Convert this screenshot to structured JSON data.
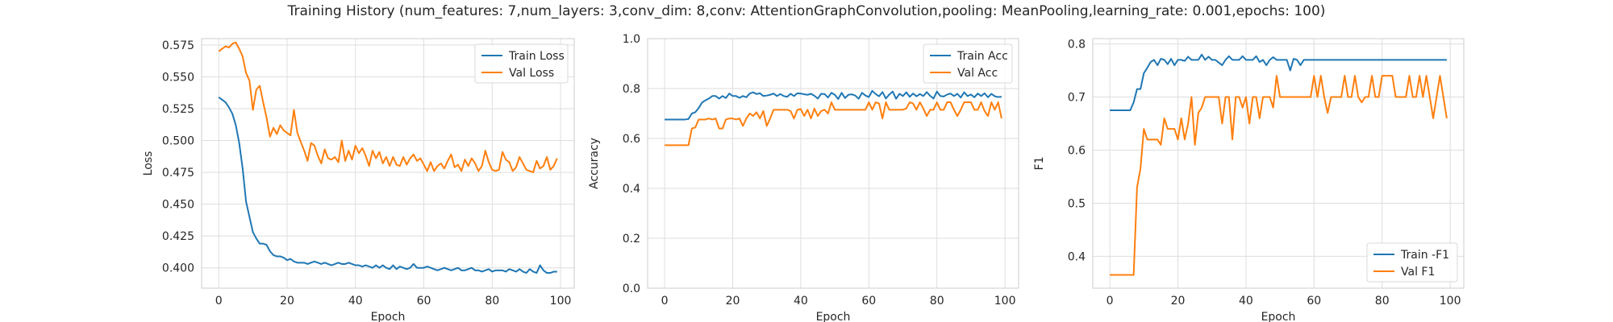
{
  "figure": {
    "title": "Training History (num_features: 7,num_layers: 3,conv_dim: 8,conv: AttentionGraphConvolution,pooling: MeanPooling,learning_rate: 0.001,epochs: 100)"
  },
  "colors": {
    "train": "#1f77b4",
    "val": "#ff7f0e",
    "grid": "#dedede",
    "axis": "#cccccc",
    "text": "#262626"
  },
  "chart_data": [
    {
      "type": "line",
      "title": "",
      "xlabel": "Epoch",
      "ylabel": "Loss",
      "xlim": [
        -5,
        104
      ],
      "ylim": [
        0.384,
        0.58
      ],
      "xticks": [
        0,
        20,
        40,
        60,
        80,
        100
      ],
      "xtick_labels": [
        "0",
        "20",
        "40",
        "60",
        "80",
        "100"
      ],
      "yticks": [
        0.4,
        0.425,
        0.45,
        0.475,
        0.5,
        0.525,
        0.55,
        0.575
      ],
      "ytick_labels": [
        "0.400",
        "0.425",
        "0.450",
        "0.475",
        "0.500",
        "0.525",
        "0.550",
        "0.575"
      ],
      "grid": true,
      "legend_position": "top-right",
      "series": [
        {
          "name": "Train Loss",
          "color": "#1f77b4",
          "values": [
            0.534,
            0.532,
            0.53,
            0.526,
            0.521,
            0.512,
            0.498,
            0.478,
            0.452,
            0.44,
            0.428,
            0.423,
            0.419,
            0.419,
            0.418,
            0.413,
            0.41,
            0.409,
            0.409,
            0.408,
            0.406,
            0.407,
            0.405,
            0.404,
            0.404,
            0.404,
            0.403,
            0.404,
            0.405,
            0.404,
            0.403,
            0.404,
            0.403,
            0.402,
            0.403,
            0.404,
            0.403,
            0.403,
            0.404,
            0.403,
            0.402,
            0.402,
            0.401,
            0.402,
            0.401,
            0.4,
            0.402,
            0.4,
            0.402,
            0.4,
            0.399,
            0.402,
            0.399,
            0.401,
            0.4,
            0.399,
            0.4,
            0.403,
            0.4,
            0.4,
            0.4,
            0.401,
            0.4,
            0.399,
            0.398,
            0.399,
            0.4,
            0.399,
            0.398,
            0.399,
            0.4,
            0.398,
            0.398,
            0.399,
            0.4,
            0.398,
            0.398,
            0.397,
            0.398,
            0.399,
            0.397,
            0.398,
            0.398,
            0.398,
            0.397,
            0.399,
            0.398,
            0.397,
            0.399,
            0.397,
            0.396,
            0.399,
            0.397,
            0.396,
            0.402,
            0.398,
            0.396,
            0.396,
            0.397,
            0.397
          ]
        },
        {
          "name": "Val Loss",
          "color": "#ff7f0e",
          "values": [
            0.57,
            0.572,
            0.574,
            0.573,
            0.576,
            0.577,
            0.572,
            0.566,
            0.553,
            0.547,
            0.524,
            0.54,
            0.543,
            0.53,
            0.518,
            0.503,
            0.51,
            0.505,
            0.512,
            0.508,
            0.506,
            0.504,
            0.524,
            0.506,
            0.499,
            0.492,
            0.484,
            0.498,
            0.496,
            0.488,
            0.482,
            0.493,
            0.486,
            0.485,
            0.487,
            0.483,
            0.5,
            0.484,
            0.492,
            0.485,
            0.496,
            0.49,
            0.494,
            0.488,
            0.48,
            0.492,
            0.486,
            0.491,
            0.482,
            0.487,
            0.48,
            0.487,
            0.481,
            0.48,
            0.487,
            0.481,
            0.486,
            0.489,
            0.484,
            0.486,
            0.481,
            0.476,
            0.483,
            0.476,
            0.48,
            0.482,
            0.478,
            0.484,
            0.489,
            0.479,
            0.481,
            0.476,
            0.485,
            0.48,
            0.486,
            0.482,
            0.476,
            0.48,
            0.492,
            0.483,
            0.477,
            0.476,
            0.477,
            0.491,
            0.485,
            0.483,
            0.476,
            0.479,
            0.487,
            0.482,
            0.477,
            0.476,
            0.475,
            0.484,
            0.478,
            0.48,
            0.487,
            0.477,
            0.48,
            0.486
          ]
        }
      ]
    },
    {
      "type": "line",
      "title": "",
      "xlabel": "Epoch",
      "ylabel": "Accuracy",
      "xlim": [
        -5,
        104
      ],
      "ylim": [
        0.0,
        1.0
      ],
      "xticks": [
        0,
        20,
        40,
        60,
        80,
        100
      ],
      "xtick_labels": [
        "0",
        "20",
        "40",
        "60",
        "80",
        "100"
      ],
      "yticks": [
        0.0,
        0.2,
        0.4,
        0.6,
        0.8,
        1.0
      ],
      "ytick_labels": [
        "0.0",
        "0.2",
        "0.4",
        "0.6",
        "0.8",
        "1.0"
      ],
      "grid": true,
      "legend_position": "top-right",
      "series": [
        {
          "name": "Train Acc",
          "color": "#1f77b4",
          "values": [
            0.676,
            0.676,
            0.676,
            0.676,
            0.676,
            0.676,
            0.676,
            0.678,
            0.7,
            0.705,
            0.722,
            0.744,
            0.753,
            0.76,
            0.77,
            0.77,
            0.76,
            0.77,
            0.762,
            0.78,
            0.77,
            0.77,
            0.763,
            0.77,
            0.765,
            0.78,
            0.785,
            0.778,
            0.781,
            0.77,
            0.772,
            0.775,
            0.78,
            0.77,
            0.778,
            0.77,
            0.767,
            0.779,
            0.77,
            0.781,
            0.78,
            0.777,
            0.775,
            0.779,
            0.771,
            0.76,
            0.779,
            0.778,
            0.764,
            0.783,
            0.775,
            0.758,
            0.783,
            0.762,
            0.775,
            0.777,
            0.772,
            0.759,
            0.783,
            0.772,
            0.766,
            0.791,
            0.778,
            0.769,
            0.786,
            0.76,
            0.776,
            0.788,
            0.759,
            0.779,
            0.77,
            0.785,
            0.767,
            0.78,
            0.769,
            0.778,
            0.77,
            0.786,
            0.771,
            0.76,
            0.788,
            0.77,
            0.768,
            0.776,
            0.78,
            0.77,
            0.779,
            0.764,
            0.785,
            0.77,
            0.776,
            0.765,
            0.78,
            0.77,
            0.781,
            0.765,
            0.779,
            0.769,
            0.766,
            0.767
          ]
        },
        {
          "name": "Val Acc",
          "color": "#ff7f0e",
          "values": [
            0.573,
            0.573,
            0.573,
            0.573,
            0.573,
            0.573,
            0.573,
            0.573,
            0.64,
            0.644,
            0.676,
            0.676,
            0.676,
            0.68,
            0.676,
            0.68,
            0.64,
            0.64,
            0.676,
            0.68,
            0.68,
            0.676,
            0.68,
            0.65,
            0.68,
            0.7,
            0.69,
            0.705,
            0.68,
            0.71,
            0.65,
            0.68,
            0.715,
            0.715,
            0.715,
            0.715,
            0.715,
            0.71,
            0.68,
            0.715,
            0.718,
            0.69,
            0.715,
            0.68,
            0.72,
            0.69,
            0.71,
            0.715,
            0.7,
            0.745,
            0.715,
            0.715,
            0.715,
            0.715,
            0.715,
            0.715,
            0.715,
            0.715,
            0.715,
            0.715,
            0.745,
            0.715,
            0.745,
            0.74,
            0.68,
            0.745,
            0.715,
            0.715,
            0.715,
            0.715,
            0.715,
            0.72,
            0.745,
            0.74,
            0.715,
            0.745,
            0.72,
            0.69,
            0.715,
            0.715,
            0.745,
            0.715,
            0.715,
            0.745,
            0.745,
            0.715,
            0.69,
            0.715,
            0.745,
            0.745,
            0.745,
            0.715,
            0.715,
            0.745,
            0.71,
            0.69,
            0.745,
            0.715,
            0.745,
            0.68
          ]
        }
      ]
    },
    {
      "type": "line",
      "title": "",
      "xlabel": "Epoch",
      "ylabel": "F1",
      "xlim": [
        -5,
        104
      ],
      "ylim": [
        0.34,
        0.81
      ],
      "xticks": [
        0,
        20,
        40,
        60,
        80,
        100
      ],
      "xtick_labels": [
        "0",
        "20",
        "40",
        "60",
        "80",
        "100"
      ],
      "yticks": [
        0.4,
        0.5,
        0.6,
        0.7,
        0.8
      ],
      "ytick_labels": [
        "0.4",
        "0.5",
        "0.6",
        "0.7",
        "0.8"
      ],
      "grid": true,
      "legend_position": "lower-right",
      "series": [
        {
          "name": "Train -F1",
          "color": "#1f77b4",
          "values": [
            0.675,
            0.675,
            0.675,
            0.675,
            0.675,
            0.675,
            0.675,
            0.69,
            0.715,
            0.715,
            0.745,
            0.755,
            0.766,
            0.77,
            0.76,
            0.772,
            0.77,
            0.762,
            0.772,
            0.76,
            0.77,
            0.77,
            0.768,
            0.776,
            0.77,
            0.77,
            0.77,
            0.78,
            0.77,
            0.776,
            0.77,
            0.77,
            0.765,
            0.76,
            0.77,
            0.777,
            0.77,
            0.77,
            0.77,
            0.777,
            0.77,
            0.77,
            0.77,
            0.777,
            0.766,
            0.77,
            0.76,
            0.77,
            0.775,
            0.77,
            0.77,
            0.77,
            0.77,
            0.75,
            0.772,
            0.77,
            0.76,
            0.77,
            0.77,
            0.77,
            0.77,
            0.77,
            0.77,
            0.77,
            0.77,
            0.77,
            0.77,
            0.77,
            0.77,
            0.77,
            0.77,
            0.77,
            0.77,
            0.77,
            0.77,
            0.77,
            0.77,
            0.77,
            0.77,
            0.77,
            0.77,
            0.77,
            0.77,
            0.77,
            0.77,
            0.77,
            0.77,
            0.77,
            0.77,
            0.77,
            0.77,
            0.77,
            0.77,
            0.77,
            0.77,
            0.77,
            0.77,
            0.77,
            0.77,
            0.77
          ]
        },
        {
          "name": "Val F1",
          "color": "#ff7f0e",
          "values": [
            0.365,
            0.365,
            0.365,
            0.365,
            0.365,
            0.365,
            0.365,
            0.365,
            0.53,
            0.565,
            0.64,
            0.62,
            0.62,
            0.62,
            0.62,
            0.61,
            0.66,
            0.64,
            0.64,
            0.64,
            0.62,
            0.66,
            0.62,
            0.65,
            0.7,
            0.61,
            0.67,
            0.68,
            0.7,
            0.7,
            0.7,
            0.7,
            0.7,
            0.65,
            0.7,
            0.7,
            0.62,
            0.7,
            0.7,
            0.68,
            0.7,
            0.65,
            0.7,
            0.7,
            0.66,
            0.7,
            0.7,
            0.7,
            0.68,
            0.74,
            0.7,
            0.7,
            0.7,
            0.7,
            0.7,
            0.7,
            0.7,
            0.7,
            0.7,
            0.7,
            0.74,
            0.7,
            0.74,
            0.7,
            0.67,
            0.7,
            0.7,
            0.7,
            0.7,
            0.74,
            0.7,
            0.7,
            0.74,
            0.7,
            0.69,
            0.7,
            0.7,
            0.74,
            0.7,
            0.7,
            0.74,
            0.74,
            0.74,
            0.74,
            0.7,
            0.7,
            0.7,
            0.7,
            0.74,
            0.7,
            0.7,
            0.74,
            0.7,
            0.74,
            0.7,
            0.66,
            0.7,
            0.74,
            0.7,
            0.66
          ]
        }
      ]
    }
  ]
}
